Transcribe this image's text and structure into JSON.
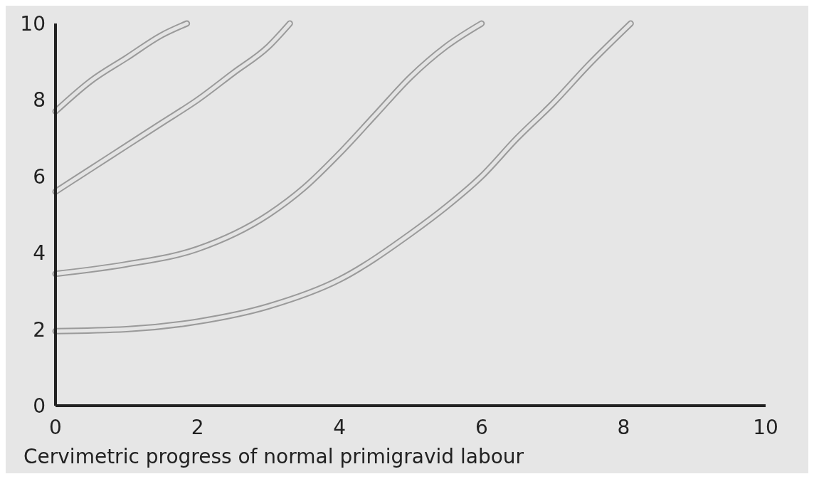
{
  "chart_data": {
    "type": "line",
    "xlabel": "Cervimetric progress of normal primigravid labour",
    "xlim": [
      0,
      10
    ],
    "xticks": [
      0,
      2,
      4,
      6,
      8,
      10
    ],
    "ylim": [
      0,
      10
    ],
    "yticks": [
      0,
      2,
      4,
      6,
      8,
      10
    ],
    "grid": false,
    "marker": "none",
    "line_style": "solid",
    "series": [
      {
        "color": "#9a9a9a",
        "x": [
          0,
          0.5,
          1,
          1.5,
          1.85
        ],
        "values": [
          7.7,
          8.5,
          9.1,
          9.7,
          10
        ]
      },
      {
        "color": "#9a9a9a",
        "x": [
          0,
          0.5,
          1,
          1.5,
          2,
          2.5,
          3,
          3.3
        ],
        "values": [
          5.6,
          6.2,
          6.8,
          7.4,
          8.0,
          8.7,
          9.4,
          10
        ]
      },
      {
        "color": "#9a9a9a",
        "x": [
          0,
          1,
          2,
          3,
          3.5,
          4,
          4.5,
          5,
          5.5,
          6
        ],
        "values": [
          3.45,
          3.7,
          4.1,
          5.0,
          5.7,
          6.6,
          7.6,
          8.6,
          9.4,
          10
        ]
      },
      {
        "color": "#9a9a9a",
        "x": [
          0,
          1,
          2,
          3,
          4,
          5,
          5.5,
          6,
          6.5,
          7,
          7.5,
          8.1
        ],
        "values": [
          1.95,
          2.0,
          2.2,
          2.6,
          3.3,
          4.5,
          5.2,
          6.0,
          7.0,
          7.9,
          8.9,
          10
        ]
      }
    ]
  }
}
